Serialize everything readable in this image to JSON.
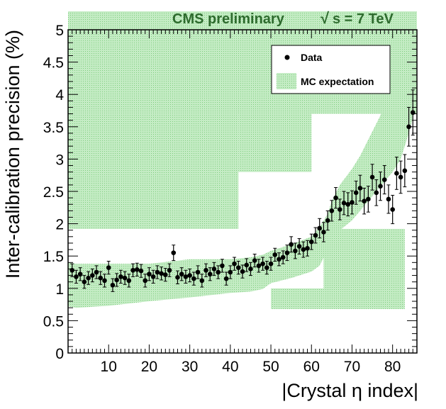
{
  "chart_data": {
    "type": "scatter",
    "title": "CMS preliminary",
    "title_energy": "s = 7 TeV",
    "xlabel": "|Crystal η index|",
    "ylabel": "Inter-calibration precision (%)",
    "xlim": [
      0,
      86
    ],
    "ylim": [
      0,
      5
    ],
    "xticks": [
      10,
      20,
      30,
      40,
      50,
      60,
      70,
      80
    ],
    "xtick_labels": [
      "10",
      "20",
      "30",
      "40",
      "50",
      "60",
      "70",
      "80"
    ],
    "yticks": [
      0,
      0.5,
      1,
      1.5,
      2,
      2.5,
      3,
      3.5,
      4,
      4.5,
      5
    ],
    "ytick_labels": [
      "0",
      "0.5",
      "1",
      "1.5",
      "2",
      "2.5",
      "3",
      "3.5",
      "4",
      "4.5",
      "5"
    ],
    "legend": {
      "placement": "top-right",
      "entries": [
        {
          "label": "Data",
          "marker": "dot"
        },
        {
          "label": "MC expectation",
          "marker": "green-box"
        }
      ]
    },
    "colors": {
      "mc_band": "#b5e8b5",
      "mc_band_dots": "#7fcc7f",
      "data": "#000000",
      "title": "#2e6b2e"
    },
    "series": [
      {
        "name": "Data",
        "x": [
          1,
          2,
          3,
          4,
          5,
          6,
          7,
          8,
          9,
          10,
          11,
          12,
          13,
          14,
          15,
          16,
          17,
          18,
          19,
          20,
          21,
          22,
          23,
          24,
          25,
          26,
          27,
          28,
          29,
          30,
          31,
          32,
          33,
          34,
          35,
          36,
          37,
          38,
          39,
          40,
          41,
          42,
          43,
          44,
          45,
          46,
          47,
          48,
          49,
          50,
          51,
          52,
          53,
          54,
          55,
          56,
          57,
          58,
          59,
          60,
          61,
          62,
          63,
          64,
          65,
          66,
          67,
          68,
          69,
          70,
          71,
          72,
          73,
          74,
          75,
          76,
          77,
          78,
          79,
          80,
          81,
          82,
          83,
          84,
          85
        ],
        "y": [
          1.28,
          1.18,
          1.22,
          1.1,
          1.16,
          1.2,
          1.25,
          1.16,
          1.12,
          1.32,
          1.05,
          1.13,
          1.18,
          1.16,
          1.12,
          1.28,
          1.29,
          1.27,
          1.12,
          1.22,
          1.18,
          1.25,
          1.23,
          1.21,
          1.28,
          1.55,
          1.17,
          1.22,
          1.18,
          1.2,
          1.15,
          1.25,
          1.12,
          1.28,
          1.22,
          1.3,
          1.25,
          1.35,
          1.15,
          1.25,
          1.38,
          1.32,
          1.26,
          1.36,
          1.3,
          1.43,
          1.35,
          1.38,
          1.32,
          1.38,
          1.52,
          1.45,
          1.48,
          1.55,
          1.68,
          1.58,
          1.65,
          1.6,
          1.62,
          1.72,
          1.82,
          1.93,
          1.87,
          2.05,
          2.2,
          2.4,
          2.22,
          2.32,
          2.3,
          2.33,
          2.48,
          2.55,
          2.35,
          2.38,
          2.72,
          2.48,
          2.58,
          2.68,
          2.38,
          2.22,
          2.78,
          2.72,
          2.82,
          3.5,
          3.72
        ],
        "err": [
          0.1,
          0.1,
          0.1,
          0.1,
          0.1,
          0.1,
          0.1,
          0.1,
          0.1,
          0.1,
          0.1,
          0.1,
          0.1,
          0.1,
          0.1,
          0.1,
          0.1,
          0.1,
          0.1,
          0.1,
          0.1,
          0.1,
          0.1,
          0.1,
          0.1,
          0.12,
          0.1,
          0.1,
          0.1,
          0.1,
          0.1,
          0.1,
          0.1,
          0.1,
          0.1,
          0.1,
          0.1,
          0.1,
          0.1,
          0.1,
          0.1,
          0.1,
          0.1,
          0.1,
          0.1,
          0.1,
          0.1,
          0.1,
          0.1,
          0.1,
          0.1,
          0.1,
          0.1,
          0.12,
          0.12,
          0.12,
          0.12,
          0.12,
          0.12,
          0.12,
          0.12,
          0.15,
          0.15,
          0.15,
          0.16,
          0.16,
          0.16,
          0.18,
          0.18,
          0.18,
          0.18,
          0.2,
          0.2,
          0.2,
          0.2,
          0.2,
          0.22,
          0.22,
          0.22,
          0.22,
          0.25,
          0.25,
          0.25,
          0.3,
          0.35
        ]
      }
    ],
    "mc_band": {
      "name": "MC expectation",
      "x_edges": [
        0,
        2,
        10,
        20,
        30,
        40,
        45,
        48,
        50,
        55,
        60,
        62,
        64,
        65,
        67,
        70,
        72,
        74,
        76,
        78,
        80,
        82,
        83,
        84,
        85,
        86
      ],
      "lower": [
        0.72,
        0.7,
        0.73,
        0.8,
        0.86,
        0.93,
        0.95,
        0.99,
        1.08,
        1.16,
        1.26,
        1.35,
        1.6,
        1.75,
        1.9,
        2.05,
        2.2,
        2.35,
        2.5,
        2.65,
        2.8,
        3.0,
        3.2,
        3.4,
        3.65,
        3.8
      ],
      "upper": [
        1.4,
        1.38,
        1.38,
        1.38,
        1.45,
        1.45,
        1.48,
        1.52,
        1.58,
        1.68,
        1.8,
        1.95,
        2.15,
        2.35,
        2.6,
        2.85,
        3.05,
        3.3,
        3.55,
        3.8,
        4.0,
        4.15,
        4.25,
        4.35,
        4.6,
        5.0
      ]
    }
  }
}
